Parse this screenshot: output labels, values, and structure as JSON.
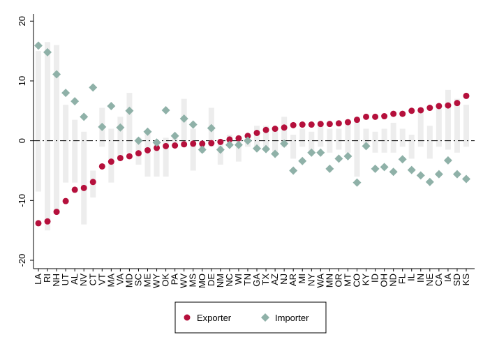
{
  "chart_data": {
    "type": "dot",
    "categories": [
      "LA",
      "RI",
      "NH",
      "UT",
      "AL",
      "NV",
      "CT",
      "VT",
      "MA",
      "VA",
      "MD",
      "SC",
      "ME",
      "WY",
      "OK",
      "PA",
      "WV",
      "MS",
      "MO",
      "DE",
      "NM",
      "NC",
      "WI",
      "TN",
      "GA",
      "TX",
      "AZ",
      "NJ",
      "AR",
      "MI",
      "NY",
      "WA",
      "MN",
      "OR",
      "MT",
      "CO",
      "KY",
      "ID",
      "OH",
      "ND",
      "FL",
      "IL",
      "IN",
      "NE",
      "CA",
      "IA",
      "SD",
      "KS"
    ],
    "series": [
      {
        "name": "Exporter",
        "color": "#b5103c",
        "marker": "circle",
        "values": [
          -13.8,
          -13.5,
          -11.9,
          -10.1,
          -8.2,
          -7.9,
          -6.9,
          -4.3,
          -3.5,
          -2.9,
          -2.6,
          -2.1,
          -1.6,
          -1.2,
          -0.9,
          -0.8,
          -0.6,
          -0.5,
          -0.5,
          -0.4,
          -0.2,
          0.2,
          0.4,
          0.8,
          1.3,
          1.8,
          2.0,
          2.2,
          2.6,
          2.7,
          2.7,
          2.8,
          2.8,
          2.9,
          3.1,
          3.5,
          4.0,
          4.0,
          4.1,
          4.5,
          4.5,
          5.0,
          5.1,
          5.5,
          5.8,
          5.9,
          6.3,
          7.5
        ]
      },
      {
        "name": "Importer",
        "color": "#8fb1a8",
        "marker": "diamond",
        "values": [
          15.9,
          14.8,
          11.1,
          8.0,
          6.6,
          4.0,
          8.9,
          2.3,
          5.8,
          2.2,
          5.0,
          0,
          1.5,
          -0.3,
          5.1,
          0.8,
          3.7,
          2.7,
          -1.5,
          2.1,
          -1.5,
          -0.7,
          -0.7,
          0,
          -1.3,
          -1.4,
          -2.2,
          -0.5,
          -5.0,
          -3.4,
          -2.0,
          -2.0,
          -4.7,
          -3.0,
          -2.6,
          -7.0,
          -0.9,
          -4.7,
          -4.4,
          -5.2,
          -3.1,
          -4.9,
          -5.8,
          -6.9,
          -5.6,
          -3.3,
          -5.6,
          -6.4
        ]
      }
    ],
    "range_color": "#ededed",
    "range_low": [
      -8.5,
      -15,
      -12,
      -7,
      -7,
      -14,
      -9.5,
      -1,
      -7,
      -2.5,
      -2,
      -4,
      -6,
      -6,
      -6,
      -1,
      -1,
      -5,
      -2,
      -1,
      -4,
      -1,
      -3.5,
      -1,
      -1.5,
      -1.5,
      -2,
      -1,
      -3,
      -1,
      -2,
      -1,
      -2,
      -1.5,
      -2,
      -6,
      -1,
      -2,
      -2,
      -2,
      -1,
      -3,
      -1,
      -3,
      -1,
      -1.5,
      -2,
      -1
    ],
    "range_high": [
      15,
      16.5,
      16,
      6,
      3.5,
      1.5,
      -5,
      5.5,
      2,
      4,
      8,
      0.5,
      1.5,
      0,
      0.5,
      1,
      7,
      2,
      0,
      5.5,
      -0.5,
      1,
      0,
      1,
      2.5,
      2.5,
      2,
      4,
      1,
      2,
      1.5,
      3,
      2,
      2,
      3,
      4,
      2,
      1.5,
      2,
      3,
      2,
      1,
      5,
      2.5,
      6,
      8.5,
      7,
      6
    ],
    "reference_line": 0,
    "ylim": [
      -21.4,
      21.2
    ],
    "yticks": [
      -20,
      -10,
      0,
      10,
      20
    ],
    "legend": "bottom"
  }
}
